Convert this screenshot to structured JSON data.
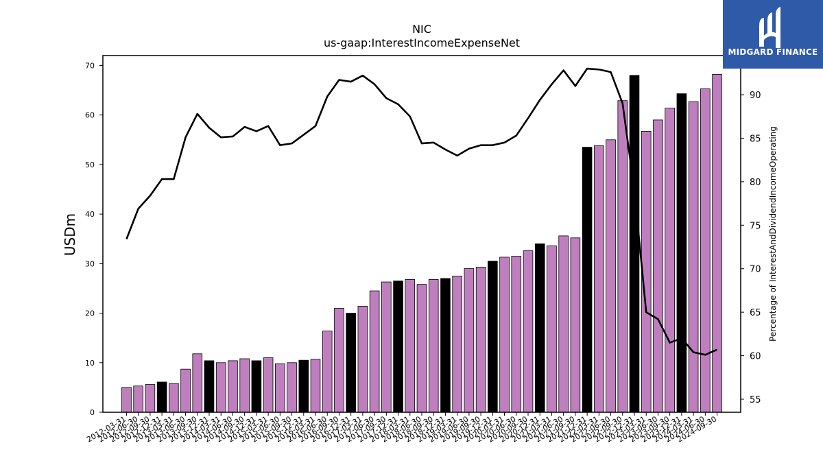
{
  "brand": {
    "name": "MIDGARD FINANCE",
    "icon": "midgard-logo-icon",
    "color": "#2f5aa8"
  },
  "chart_data": {
    "type": "bar",
    "title": "NIC",
    "subtitle": "us-gaap:InterestIncomeExpenseNet",
    "ylabel": "USDm",
    "y2label": "Percentage of InterestAndDividendIncomeOperating",
    "ylim": [
      0,
      72
    ],
    "y2lim": [
      53.5,
      94.5
    ],
    "yticks": [
      0,
      10,
      20,
      30,
      40,
      50,
      60,
      70
    ],
    "y2ticks": [
      55,
      60,
      65,
      70,
      75,
      80,
      85,
      90
    ],
    "bar_color": "#bf7fbf",
    "highlight_color": "#000000",
    "line_color": "#000000",
    "categories": [
      "2012-03-31",
      "2012-06-30",
      "2012-09-30",
      "2012-12-31",
      "2013-03-31",
      "2013-06-30",
      "2013-09-30",
      "2013-12-31",
      "2014-03-31",
      "2014-06-30",
      "2014-09-30",
      "2014-12-31",
      "2015-03-31",
      "2015-06-30",
      "2015-09-30",
      "2015-12-31",
      "2016-03-31",
      "2016-06-30",
      "2016-09-30",
      "2016-12-31",
      "2017-03-31",
      "2017-06-30",
      "2017-09-30",
      "2017-12-31",
      "2018-03-31",
      "2018-06-30",
      "2018-09-30",
      "2018-12-31",
      "2019-03-31",
      "2019-06-30",
      "2019-09-30",
      "2019-12-31",
      "2020-03-31",
      "2020-06-30",
      "2020-09-30",
      "2020-12-31",
      "2021-03-31",
      "2021-06-30",
      "2021-09-30",
      "2021-12-31",
      "2022-03-31",
      "2022-06-30",
      "2022-09-30",
      "2022-12-31",
      "2023-03-31",
      "2023-06-30",
      "2023-09-30",
      "2023-12-31",
      "2024-03-31",
      "2024-06-30",
      "2024-09-30"
    ],
    "series": [
      {
        "type": "bar",
        "values": [
          5.0,
          5.3,
          5.6,
          6.1,
          5.8,
          8.7,
          11.8,
          10.4,
          10.0,
          10.4,
          10.8,
          10.4,
          11.0,
          9.8,
          10.0,
          10.5,
          10.7,
          16.4,
          21.0,
          20.0,
          21.4,
          24.5,
          26.3,
          26.5,
          26.8,
          25.8,
          26.8,
          27.0,
          27.5,
          29.0,
          29.3,
          30.5,
          31.3,
          31.5,
          32.6,
          34.0,
          33.6,
          35.6,
          35.2,
          53.5,
          53.8,
          55.0,
          62.9,
          68.0,
          56.7,
          59.0,
          61.4,
          64.3,
          62.7,
          65.3,
          68.2
        ],
        "highlighted": [
          false,
          false,
          false,
          true,
          false,
          false,
          false,
          true,
          false,
          false,
          false,
          true,
          false,
          false,
          false,
          true,
          false,
          false,
          false,
          true,
          false,
          false,
          false,
          true,
          false,
          false,
          false,
          true,
          false,
          false,
          false,
          true,
          false,
          false,
          false,
          true,
          false,
          false,
          false,
          true,
          false,
          false,
          false,
          true,
          false,
          false,
          false,
          true,
          false,
          false,
          false
        ]
      },
      {
        "type": "line",
        "axis": "y2",
        "values": [
          73.4,
          76.9,
          78.4,
          80.3,
          80.3,
          85.1,
          87.8,
          86.2,
          85.1,
          85.2,
          86.3,
          85.8,
          86.4,
          84.2,
          84.4,
          85.4,
          86.4,
          89.8,
          91.7,
          91.5,
          92.2,
          91.2,
          89.6,
          88.9,
          87.5,
          84.4,
          84.5,
          83.7,
          83.0,
          83.8,
          84.2,
          84.2,
          84.5,
          85.3,
          87.3,
          89.4,
          91.2,
          92.8,
          91.0,
          93.0,
          92.9,
          92.6,
          89.0,
          79.0,
          65.0,
          64.2,
          61.5,
          62.0,
          60.4,
          60.1,
          60.7
        ]
      }
    ]
  }
}
